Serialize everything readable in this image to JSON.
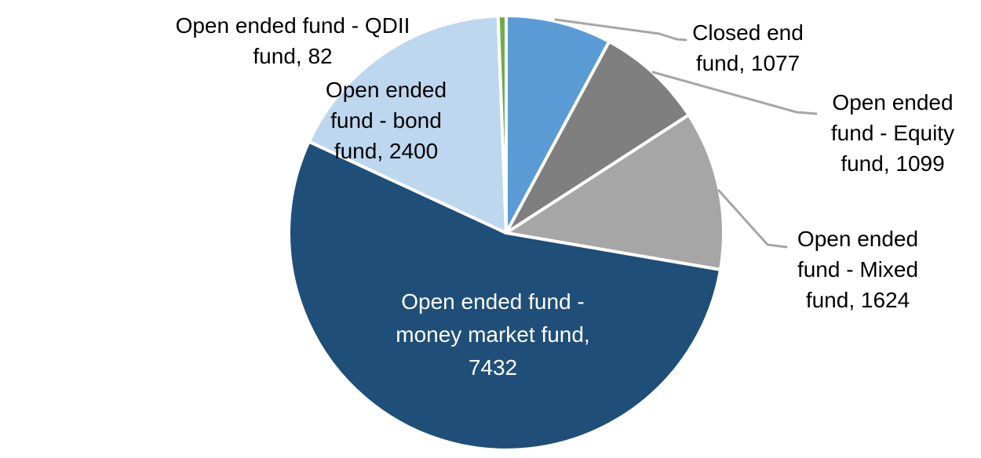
{
  "chart_data": {
    "type": "pie",
    "title": "",
    "legend_position": "none",
    "start_angle_deg": 0,
    "direction": "clockwise",
    "total": 13714,
    "background_color": "#ffffff",
    "separator_color": "#ffffff",
    "leader_line_color": "#a6a6a6",
    "label_format": "category, value",
    "slices": [
      {
        "id": "closed-end-fund",
        "label": "Closed end fund",
        "value": 1077,
        "color": "#5b9bd5",
        "label_lines": [
          "Closed end",
          "fund, 1077"
        ],
        "label_placement": "outside-right-top",
        "label_text_color": "#000000"
      },
      {
        "id": "equity-fund",
        "label": "Open ended fund - Equity fund",
        "value": 1099,
        "color": "#7f7f7f",
        "label_lines": [
          "Open ended",
          "fund - Equity",
          "fund, 1099"
        ],
        "label_placement": "outside-right",
        "label_text_color": "#000000"
      },
      {
        "id": "mixed-fund",
        "label": "Open ended fund - Mixed fund",
        "value": 1624,
        "color": "#a6a6a6",
        "label_lines": [
          "Open ended",
          "fund - Mixed",
          "fund, 1624"
        ],
        "label_placement": "outside-right-bottom",
        "label_text_color": "#000000"
      },
      {
        "id": "money-market-fund",
        "label": "Open ended fund - money market fund",
        "value": 7432,
        "color": "#1f4e78",
        "label_lines": [
          "Open ended fund -",
          "money market fund,",
          "7432"
        ],
        "label_placement": "inside",
        "label_text_color": "#ffffff"
      },
      {
        "id": "bond-fund",
        "label": "Open ended fund - bond fund",
        "value": 2400,
        "color": "#bdd7ee",
        "label_lines": [
          "Open ended",
          "fund - bond",
          "fund, 2400"
        ],
        "label_placement": "inside",
        "label_text_color": "#000000"
      },
      {
        "id": "qdii-fund",
        "label": "Open ended fund - QDII fund",
        "value": 82,
        "color": "#70ad47",
        "label_lines": [
          "Open ended fund - QDII",
          "fund, 82"
        ],
        "label_placement": "outside-left-top",
        "label_text_color": "#000000"
      }
    ]
  }
}
